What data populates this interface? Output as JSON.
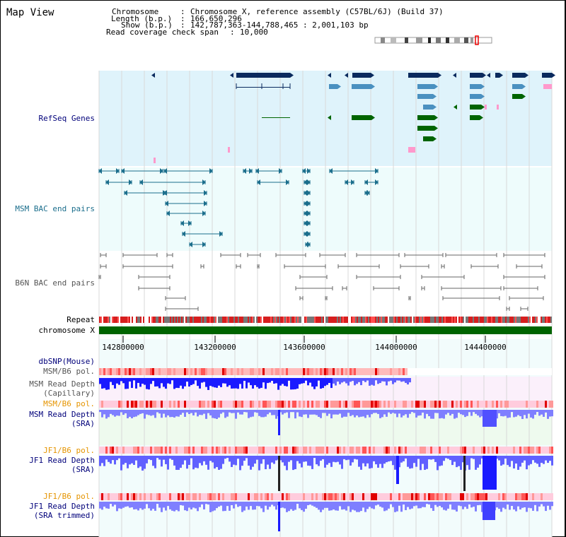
{
  "title": "Map View",
  "info": {
    "chromosome_key": "Chromosome",
    "chromosome_val": "Chromosome X, reference assembly (C57BL/6J) (Build 37)",
    "length_key": "Length (b.p.)",
    "length_val": "166,650,296",
    "show_key": "Show (b.p.)",
    "show_val": "142,787,363-144,788,465 : 2,001,103 bp",
    "span_key": "Read coverage check span",
    "span_val": "10,000"
  },
  "tracks": {
    "refseq": "RefSeq Genes",
    "msm_bac": "MSM BAC end pairs",
    "b6n_bac": "B6N BAC end pairs",
    "repeat": "Repeat",
    "chromosome": "chromosome X",
    "dbsnp": "dbSNP(Mouse)",
    "msm_b6_pol_1": "MSM/B6 pol.",
    "msm_depth_cap_1": "MSM Read Depth",
    "msm_depth_cap_2": "(Capillary)",
    "msm_b6_pol_2": "MSM/B6 pol.",
    "msm_depth_sra_1": "MSM Read Depth",
    "msm_depth_sra_2": "(SRA)",
    "jf1_b6_pol_1": "JF1/B6 pol.",
    "jf1_depth_sra_1": "JF1 Read Depth",
    "jf1_depth_sra_2": "(SRA)",
    "jf1_b6_pol_2": "JF1/B6 pol.",
    "jf1_depth_trim_1": "JF1 Read Depth",
    "jf1_depth_trim_2": "(SRA trimmed)"
  },
  "axis": {
    "ticks": [
      "142800000",
      "143200000",
      "143600000",
      "144000000",
      "144400000"
    ]
  },
  "colors": {
    "refseq_bg": "#dff3fb",
    "msm_bac_bg": "#eefcfc",
    "gene_navy": "#0a2a5e",
    "gene_blue": "#4a90c0",
    "gene_green": "#006400",
    "gene_pink": "#ff99cc",
    "bac_teal": "#1b6e8c",
    "bac_gray": "#666666",
    "chromosome_green": "#006400",
    "depth_blue": "#1a1aff",
    "depth_light": "#7f7fff"
  }
}
